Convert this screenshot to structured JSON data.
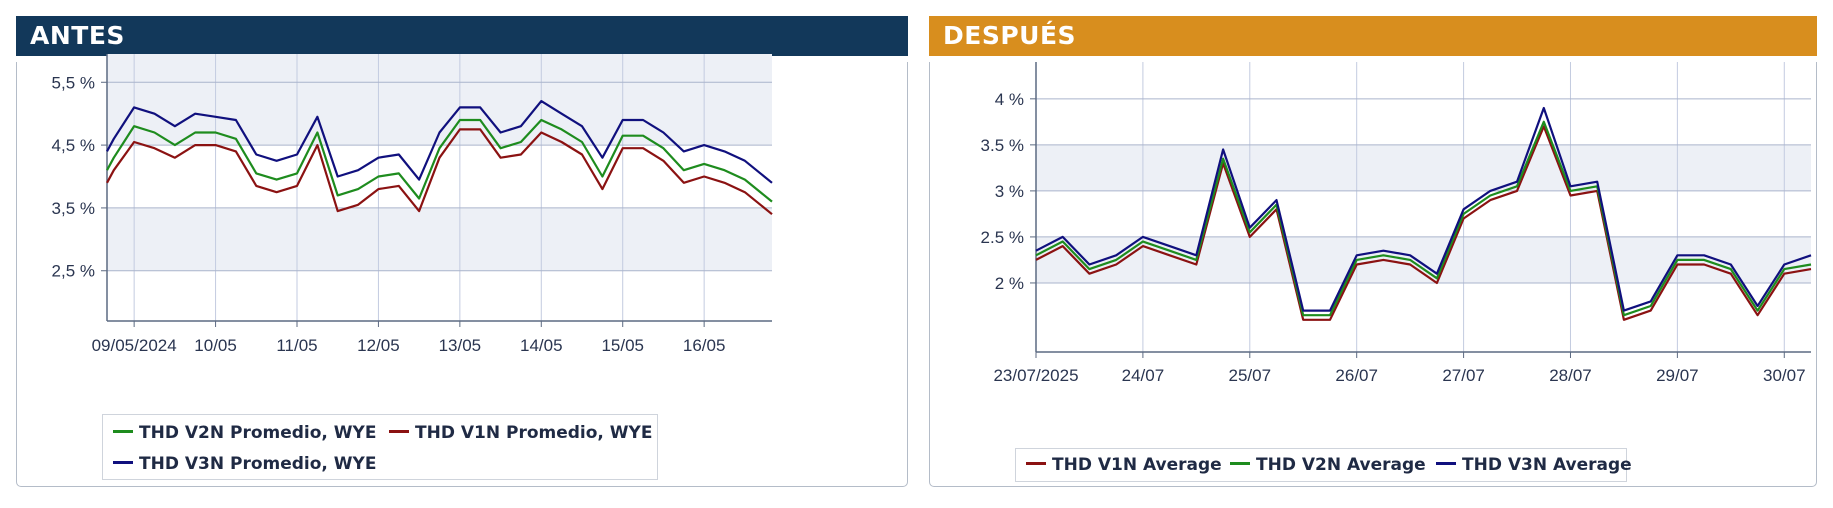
{
  "panels": [
    {
      "banner": "ANTES",
      "banner_color": "#12385a",
      "legend": [
        {
          "label": "THD V2N Promedio, WYE",
          "color": "#1e8c1e"
        },
        {
          "label": "THD V1N Promedio, WYE",
          "color": "#8b1212"
        },
        {
          "label": "THD V3N Promedio, WYE",
          "color": "#10107e"
        }
      ]
    },
    {
      "banner": "DESPUÉS",
      "banner_color": "#d88e1e",
      "legend": [
        {
          "label": "THD V1N Average",
          "color": "#8b1212"
        },
        {
          "label": "THD V2N Average",
          "color": "#1e8c1e"
        },
        {
          "label": "THD V3N Average",
          "color": "#10107e"
        }
      ]
    }
  ],
  "chart_data": [
    {
      "type": "line",
      "grid": true,
      "ylim": [
        1.7,
        5.95
      ],
      "xlim": [
        "2024-05-08T16:00",
        "2024-05-16T20:00"
      ],
      "y_ticks": [
        {
          "value": 2.5,
          "label": "2,5 %"
        },
        {
          "value": 3.5,
          "label": "3,5 %"
        },
        {
          "value": 4.5,
          "label": "4,5 %"
        },
        {
          "value": 5.5,
          "label": "5,5 %"
        }
      ],
      "x_ticks": [
        {
          "value": "2024-05-09T00:00",
          "label": "09/05/2024"
        },
        {
          "value": "2024-05-10T00:00",
          "label": "10/05"
        },
        {
          "value": "2024-05-11T00:00",
          "label": "11/05"
        },
        {
          "value": "2024-05-12T00:00",
          "label": "12/05"
        },
        {
          "value": "2024-05-13T00:00",
          "label": "13/05"
        },
        {
          "value": "2024-05-14T00:00",
          "label": "14/05"
        },
        {
          "value": "2024-05-15T00:00",
          "label": "15/05"
        },
        {
          "value": "2024-05-16T00:00",
          "label": "16/05"
        }
      ],
      "x": [
        "2024-05-08T16:00",
        "2024-05-08T18:00",
        "2024-05-09T00:00",
        "2024-05-09T06:00",
        "2024-05-09T12:00",
        "2024-05-09T18:00",
        "2024-05-10T00:00",
        "2024-05-10T06:00",
        "2024-05-10T12:00",
        "2024-05-10T18:00",
        "2024-05-11T00:00",
        "2024-05-11T06:00",
        "2024-05-11T12:00",
        "2024-05-11T18:00",
        "2024-05-12T00:00",
        "2024-05-12T06:00",
        "2024-05-12T12:00",
        "2024-05-12T18:00",
        "2024-05-13T00:00",
        "2024-05-13T06:00",
        "2024-05-13T12:00",
        "2024-05-13T18:00",
        "2024-05-14T00:00",
        "2024-05-14T06:00",
        "2024-05-14T12:00",
        "2024-05-14T18:00",
        "2024-05-15T00:00",
        "2024-05-15T06:00",
        "2024-05-15T12:00",
        "2024-05-15T18:00",
        "2024-05-16T00:00",
        "2024-05-16T06:00",
        "2024-05-16T12:00",
        "2024-05-16T20:00"
      ],
      "series": [
        {
          "name": "THD V3N Promedio, WYE",
          "color": "#10107e",
          "values": [
            4.4,
            4.6,
            5.1,
            5.0,
            4.8,
            5.0,
            4.95,
            4.9,
            4.35,
            4.25,
            4.35,
            4.95,
            4.0,
            4.1,
            4.3,
            4.35,
            3.95,
            4.7,
            5.1,
            5.1,
            4.7,
            4.8,
            5.2,
            5.0,
            4.8,
            4.3,
            4.9,
            4.9,
            4.7,
            4.4,
            4.5,
            4.4,
            4.25,
            3.9
          ]
        },
        {
          "name": "THD V2N Promedio, WYE",
          "color": "#1e8c1e",
          "values": [
            4.1,
            4.3,
            4.8,
            4.7,
            4.5,
            4.7,
            4.7,
            4.6,
            4.05,
            3.95,
            4.05,
            4.7,
            3.7,
            3.8,
            4.0,
            4.05,
            3.65,
            4.45,
            4.9,
            4.9,
            4.45,
            4.55,
            4.9,
            4.75,
            4.55,
            4.0,
            4.65,
            4.65,
            4.45,
            4.1,
            4.2,
            4.1,
            3.95,
            3.6
          ]
        },
        {
          "name": "THD V1N Promedio, WYE",
          "color": "#8b1212",
          "values": [
            3.9,
            4.1,
            4.55,
            4.45,
            4.3,
            4.5,
            4.5,
            4.4,
            3.85,
            3.75,
            3.85,
            4.5,
            3.45,
            3.55,
            3.8,
            3.85,
            3.45,
            4.3,
            4.75,
            4.75,
            4.3,
            4.35,
            4.7,
            4.55,
            4.35,
            3.8,
            4.45,
            4.45,
            4.25,
            3.9,
            4.0,
            3.9,
            3.75,
            3.4
          ]
        }
      ]
    },
    {
      "type": "line",
      "grid": true,
      "ylim": [
        1.25,
        4.4
      ],
      "xlim": [
        "2025-07-23T00:00",
        "2025-07-30T06:00"
      ],
      "y_ticks": [
        {
          "value": 2.0,
          "label": "2 %"
        },
        {
          "value": 2.5,
          "label": "2.5 %"
        },
        {
          "value": 3.0,
          "label": "3 %"
        },
        {
          "value": 3.5,
          "label": "3.5 %"
        },
        {
          "value": 4.0,
          "label": "4 %"
        }
      ],
      "x_ticks": [
        {
          "value": "2025-07-23T00:00",
          "label": "23/07/2025"
        },
        {
          "value": "2025-07-24T00:00",
          "label": "24/07"
        },
        {
          "value": "2025-07-25T00:00",
          "label": "25/07"
        },
        {
          "value": "2025-07-26T00:00",
          "label": "26/07"
        },
        {
          "value": "2025-07-27T00:00",
          "label": "27/07"
        },
        {
          "value": "2025-07-28T00:00",
          "label": "28/07"
        },
        {
          "value": "2025-07-29T00:00",
          "label": "29/07"
        },
        {
          "value": "2025-07-30T00:00",
          "label": "30/07"
        }
      ],
      "x": [
        "2025-07-23T00:00",
        "2025-07-23T06:00",
        "2025-07-23T12:00",
        "2025-07-23T18:00",
        "2025-07-24T00:00",
        "2025-07-24T06:00",
        "2025-07-24T12:00",
        "2025-07-24T18:00",
        "2025-07-25T00:00",
        "2025-07-25T06:00",
        "2025-07-25T12:00",
        "2025-07-25T18:00",
        "2025-07-26T00:00",
        "2025-07-26T06:00",
        "2025-07-26T12:00",
        "2025-07-26T18:00",
        "2025-07-27T00:00",
        "2025-07-27T06:00",
        "2025-07-27T12:00",
        "2025-07-27T18:00",
        "2025-07-28T00:00",
        "2025-07-28T06:00",
        "2025-07-28T12:00",
        "2025-07-28T18:00",
        "2025-07-29T00:00",
        "2025-07-29T06:00",
        "2025-07-29T12:00",
        "2025-07-29T18:00",
        "2025-07-30T00:00",
        "2025-07-30T06:00"
      ],
      "series": [
        {
          "name": "THD V1N Average",
          "color": "#8b1212",
          "values": [
            2.25,
            2.4,
            2.1,
            2.2,
            2.4,
            2.3,
            2.2,
            3.3,
            2.5,
            2.8,
            1.6,
            1.6,
            2.2,
            2.25,
            2.2,
            2.0,
            2.7,
            2.9,
            3.0,
            3.7,
            2.95,
            3.0,
            1.6,
            1.7,
            2.2,
            2.2,
            2.1,
            1.65,
            2.1,
            2.15
          ]
        },
        {
          "name": "THD V2N Average",
          "color": "#1e8c1e",
          "values": [
            2.3,
            2.45,
            2.15,
            2.25,
            2.45,
            2.35,
            2.25,
            3.35,
            2.55,
            2.85,
            1.65,
            1.65,
            2.25,
            2.3,
            2.25,
            2.05,
            2.75,
            2.95,
            3.05,
            3.75,
            3.0,
            3.05,
            1.65,
            1.75,
            2.25,
            2.25,
            2.15,
            1.7,
            2.15,
            2.2
          ]
        },
        {
          "name": "THD V3N Average",
          "color": "#10107e",
          "values": [
            2.35,
            2.5,
            2.2,
            2.3,
            2.5,
            2.4,
            2.3,
            3.45,
            2.6,
            2.9,
            1.7,
            1.7,
            2.3,
            2.35,
            2.3,
            2.1,
            2.8,
            3.0,
            3.1,
            3.9,
            3.05,
            3.1,
            1.7,
            1.8,
            2.3,
            2.3,
            2.2,
            1.75,
            2.2,
            2.3
          ]
        }
      ]
    }
  ]
}
